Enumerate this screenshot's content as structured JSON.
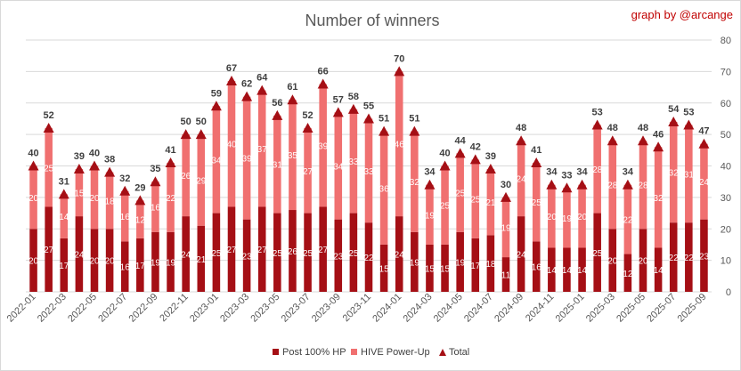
{
  "header": {
    "title": "Number of winners",
    "credit": "graph by @arcange"
  },
  "colors": {
    "post_hp": "#a50f15",
    "power_up": "#f07070",
    "total_marker": "#a50f15",
    "grid": "#d9d9d9"
  },
  "legend": {
    "position": "bottom",
    "items": [
      {
        "label": "Post 100% HP",
        "shape": "square"
      },
      {
        "label": "HIVE Power-Up",
        "shape": "square"
      },
      {
        "label": "Total",
        "shape": "triangle"
      }
    ]
  },
  "chart_data": {
    "type": "bar",
    "stacked": true,
    "title": "Number of winners",
    "xlabel": "",
    "ylabel": "",
    "ylim": [
      0,
      80
    ],
    "yticks": [
      0,
      10,
      20,
      30,
      40,
      50,
      60,
      70,
      80
    ],
    "grid": true,
    "categories": [
      "2022-01",
      "2022-02",
      "2022-03",
      "2022-04",
      "2022-05",
      "2022-06",
      "2022-07",
      "2022-08",
      "2022-09",
      "2022-10",
      "2022-11",
      "2022-12",
      "2023-01",
      "2023-02",
      "2023-03",
      "2023-04",
      "2023-05",
      "2023-06",
      "2023-07",
      "2023-08",
      "2023-09",
      "2023-10",
      "2023-11",
      "2023-12",
      "2024-01",
      "2024-02",
      "2024-03",
      "2024-04",
      "2024-05",
      "2024-06",
      "2024-07",
      "2024-08",
      "2024-09",
      "2024-10",
      "2024-11",
      "2024-12",
      "2025-01",
      "2025-02",
      "2025-03",
      "2025-04",
      "2025-05",
      "2025-06",
      "2025-07",
      "2025-08",
      "2025-09"
    ],
    "x_tick_labels": [
      "2022-01",
      "",
      "2022-03",
      "",
      "2022-05",
      "",
      "2022-07",
      "",
      "2022-09",
      "",
      "2022-11",
      "",
      "2023-01",
      "",
      "2023-03",
      "",
      "2023-05",
      "",
      "2023-07",
      "",
      "2023-09",
      "",
      "2023-11",
      "",
      "2024-01",
      "",
      "2024-03",
      "",
      "2024-05",
      "",
      "2024-07",
      "",
      "2024-09",
      "",
      "2024-11",
      "",
      "2025-01",
      "",
      "2025-03",
      "",
      "2025-05",
      "",
      "2025-07",
      "",
      "2025-09"
    ],
    "series": [
      {
        "name": "Post 100% HP",
        "values": [
          20,
          27,
          17,
          24,
          20,
          20,
          16,
          17,
          19,
          19,
          24,
          21,
          25,
          27,
          23,
          27,
          25,
          26,
          25,
          27,
          23,
          25,
          22,
          15,
          24,
          19,
          15,
          15,
          19,
          17,
          18,
          11,
          24,
          16,
          14,
          14,
          14,
          25,
          20,
          12,
          20,
          14,
          22,
          22,
          23
        ]
      },
      {
        "name": "HIVE Power-Up",
        "values": [
          20,
          25,
          14,
          15,
          20,
          18,
          16,
          12,
          16,
          22,
          26,
          29,
          34,
          40,
          39,
          37,
          31,
          35,
          27,
          39,
          34,
          33,
          33,
          36,
          46,
          32,
          19,
          25,
          25,
          25,
          21,
          19,
          24,
          25,
          20,
          19,
          20,
          28,
          28,
          22,
          28,
          32,
          32,
          31,
          24
        ]
      },
      {
        "name": "Total",
        "values": [
          40,
          52,
          31,
          39,
          40,
          38,
          32,
          29,
          35,
          41,
          50,
          50,
          59,
          67,
          62,
          64,
          56,
          61,
          52,
          66,
          57,
          58,
          55,
          51,
          70,
          51,
          34,
          40,
          44,
          42,
          39,
          30,
          48,
          41,
          34,
          33,
          34,
          53,
          48,
          34,
          48,
          46,
          54,
          53,
          47
        ]
      }
    ]
  }
}
